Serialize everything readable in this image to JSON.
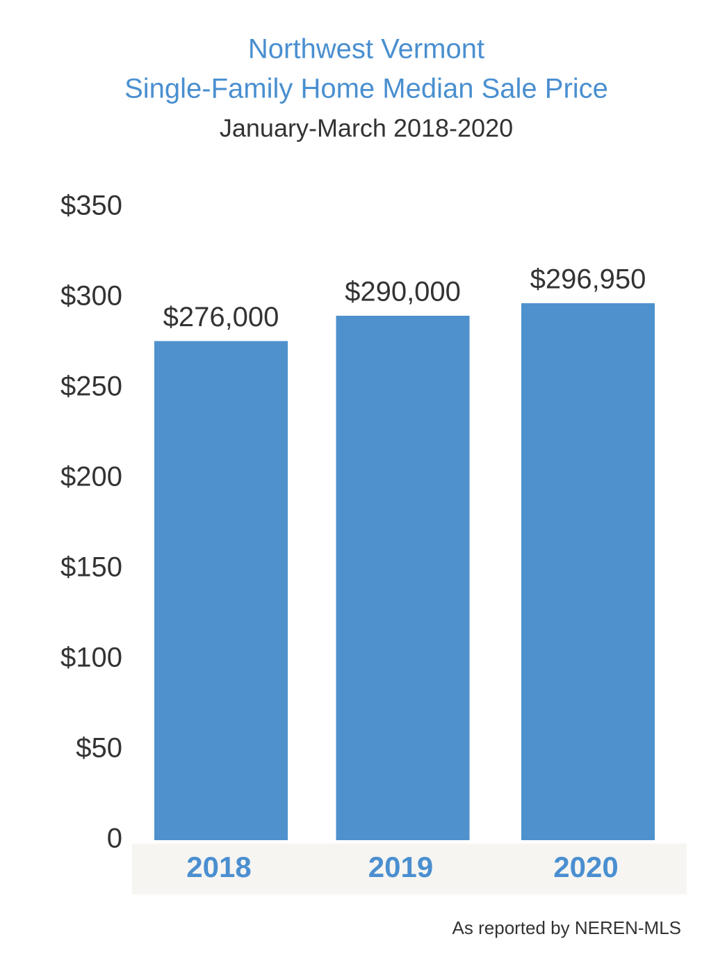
{
  "chart_data": {
    "type": "bar",
    "title": [
      "Northwest Vermont",
      "Single-Family Home Median Sale Price"
    ],
    "subtitle": "January-March 2018-2020",
    "categories": [
      "2018",
      "2019",
      "2020"
    ],
    "values": [
      276,
      290,
      296.95
    ],
    "value_labels": [
      "$276,000",
      "$290,000",
      "$296,950"
    ],
    "color": "#4f91cd",
    "ylim": [
      0,
      350
    ],
    "yticks": [
      0,
      {
        "value": 50,
        "label": "$50"
      },
      {
        "value": 100,
        "label": "$100"
      },
      {
        "value": 150,
        "label": "$150"
      },
      {
        "value": 200,
        "label": "$200"
      },
      {
        "value": 250,
        "label": "$250"
      },
      {
        "value": 300,
        "label": "$300"
      },
      {
        "value": 350,
        "label": "$350"
      }
    ],
    "grid": false,
    "source": "As reported by NEREN-MLS"
  }
}
